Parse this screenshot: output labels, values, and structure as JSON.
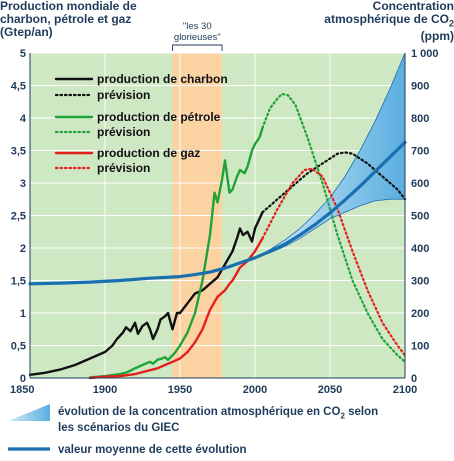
{
  "left_title": [
    "Production mondiale de",
    "charbon, pétrole et gaz",
    "(Gtep/an)"
  ],
  "right_title": [
    "Concentration",
    "atmosphérique de CO",
    "2",
    "(ppm)"
  ],
  "period_label": [
    "\"les 30",
    "glorieuses\""
  ],
  "colors": {
    "coal": "#111111",
    "oil": "#1fa339",
    "gas": "#e3201b",
    "co2": "#1a6fb0",
    "band": "#5aaee0",
    "bg_green": "#cfe8c4",
    "bg_orange": "#fbd3a3",
    "axis_text": "#1f3b5b"
  },
  "legend": {
    "coal": "production de charbon",
    "coal_forecast": "prévision",
    "oil": "production de pétrole",
    "oil_forecast": "prévision",
    "gas": "production de gaz",
    "gas_forecast": "prévision"
  },
  "bottom_legend": {
    "band_line1": "évolution de la concentration atmosphérique en CO",
    "band_sub": "2",
    "band_line1_end": " selon",
    "band_line2": "les scénarios du GIEC",
    "mean": "valeur moyenne de cette évolution"
  },
  "chart_data": {
    "type": "line",
    "x_range": [
      1850,
      2100
    ],
    "x_ticks": [
      "1850",
      "1900",
      "1950",
      "2000",
      "2050",
      "2100"
    ],
    "y_left_range": [
      0,
      5
    ],
    "y_left_ticks": [
      "0",
      "0,5",
      "1",
      "1,5",
      "2",
      "2,5",
      "3",
      "3,5",
      "4",
      "4,5",
      "5"
    ],
    "y_right_range": [
      0,
      1000
    ],
    "y_right_ticks": [
      "0",
      "100",
      "200",
      "300",
      "400",
      "500",
      "600",
      "700",
      "800",
      "900",
      "1 000"
    ],
    "highlight_period": [
      1945,
      1978
    ],
    "series": [
      {
        "name": "production de charbon",
        "axis": "left",
        "style": "solid",
        "color_key": "coal",
        "x": [
          1850,
          1860,
          1870,
          1880,
          1890,
          1900,
          1905,
          1908,
          1912,
          1914,
          1917,
          1920,
          1922,
          1925,
          1928,
          1930,
          1932,
          1935,
          1937,
          1940,
          1942,
          1945,
          1948,
          1950,
          1955,
          1960,
          1965,
          1970,
          1975,
          1980,
          1985,
          1988,
          1990,
          1992,
          1995,
          1998,
          2000,
          2003,
          2005
        ],
        "y": [
          0.05,
          0.08,
          0.13,
          0.2,
          0.3,
          0.4,
          0.5,
          0.6,
          0.7,
          0.78,
          0.72,
          0.85,
          0.68,
          0.8,
          0.85,
          0.75,
          0.6,
          0.75,
          0.9,
          0.95,
          1.0,
          0.75,
          1.0,
          1.0,
          1.15,
          1.3,
          1.35,
          1.45,
          1.55,
          1.75,
          1.95,
          2.15,
          2.3,
          2.2,
          2.25,
          2.1,
          2.3,
          2.45,
          2.55
        ]
      },
      {
        "name": "prévision",
        "axis": "left",
        "style": "dashed",
        "color_key": "coal",
        "x": [
          2005,
          2015,
          2025,
          2035,
          2045,
          2055,
          2060,
          2065,
          2075,
          2085,
          2095,
          2100
        ],
        "y": [
          2.55,
          2.75,
          2.95,
          3.15,
          3.3,
          3.45,
          3.47,
          3.45,
          3.3,
          3.1,
          2.9,
          2.75
        ]
      },
      {
        "name": "production de pétrole",
        "axis": "left",
        "style": "solid",
        "color_key": "oil",
        "x": [
          1890,
          1900,
          1910,
          1915,
          1920,
          1925,
          1930,
          1932,
          1935,
          1938,
          1940,
          1942,
          1945,
          1947,
          1950,
          1955,
          1960,
          1965,
          1970,
          1973,
          1975,
          1978,
          1980,
          1983,
          1985,
          1988,
          1990,
          1993,
          1995,
          1998,
          2000,
          2003,
          2005
        ],
        "y": [
          0.01,
          0.03,
          0.06,
          0.09,
          0.15,
          0.2,
          0.25,
          0.22,
          0.28,
          0.3,
          0.32,
          0.28,
          0.35,
          0.4,
          0.5,
          0.7,
          1.0,
          1.5,
          2.2,
          2.85,
          2.7,
          3.05,
          3.35,
          2.85,
          2.9,
          3.1,
          3.2,
          3.15,
          3.25,
          3.5,
          3.6,
          3.7,
          3.85
        ]
      },
      {
        "name": "prévision",
        "axis": "left",
        "style": "dashed",
        "color_key": "oil",
        "x": [
          2005,
          2010,
          2015,
          2018,
          2022,
          2027,
          2035,
          2045,
          2055,
          2065,
          2075,
          2085,
          2095,
          2100
        ],
        "y": [
          3.85,
          4.15,
          4.3,
          4.37,
          4.35,
          4.2,
          3.7,
          3.0,
          2.2,
          1.5,
          1.0,
          0.6,
          0.35,
          0.25
        ]
      },
      {
        "name": "production de gaz",
        "axis": "left",
        "style": "solid",
        "color_key": "gas",
        "x": [
          1890,
          1900,
          1910,
          1920,
          1930,
          1935,
          1940,
          1945,
          1950,
          1955,
          1960,
          1965,
          1970,
          1975,
          1980,
          1983,
          1985,
          1990,
          1995,
          2000,
          2005
        ],
        "y": [
          0.0,
          0.02,
          0.03,
          0.06,
          0.12,
          0.15,
          0.2,
          0.25,
          0.3,
          0.4,
          0.55,
          0.75,
          1.05,
          1.25,
          1.35,
          1.45,
          1.5,
          1.7,
          1.8,
          1.95,
          2.15
        ]
      },
      {
        "name": "prévision",
        "axis": "left",
        "style": "dashed",
        "color_key": "gas",
        "x": [
          2005,
          2015,
          2025,
          2033,
          2038,
          2045,
          2055,
          2065,
          2075,
          2085,
          2095,
          2100
        ],
        "y": [
          2.15,
          2.6,
          3.0,
          3.2,
          3.22,
          3.1,
          2.6,
          1.95,
          1.35,
          0.85,
          0.5,
          0.35
        ]
      },
      {
        "name": "valeur moyenne de cette évolution",
        "axis": "right",
        "style": "solid",
        "color_key": "co2",
        "x": [
          1850,
          1870,
          1890,
          1910,
          1930,
          1950,
          1960,
          1970,
          1980,
          1990,
          2000,
          2010,
          2020,
          2030,
          2040,
          2050,
          2060,
          2070,
          2080,
          2090,
          2100
        ],
        "y": [
          290,
          292,
          295,
          300,
          307,
          312,
          318,
          326,
          338,
          354,
          370,
          390,
          412,
          440,
          472,
          508,
          548,
          590,
          635,
          680,
          725
        ]
      }
    ],
    "band": {
      "name": "évolution de la concentration atmosphérique en CO2 selon les scénarios du GIEC",
      "x": [
        2000,
        2010,
        2020,
        2030,
        2040,
        2050,
        2060,
        2070,
        2080,
        2090,
        2100
      ],
      "lower": [
        370,
        385,
        405,
        430,
        460,
        490,
        510,
        530,
        545,
        550,
        550
      ],
      "upper": [
        370,
        395,
        425,
        460,
        505,
        555,
        620,
        700,
        790,
        890,
        1000
      ]
    }
  }
}
